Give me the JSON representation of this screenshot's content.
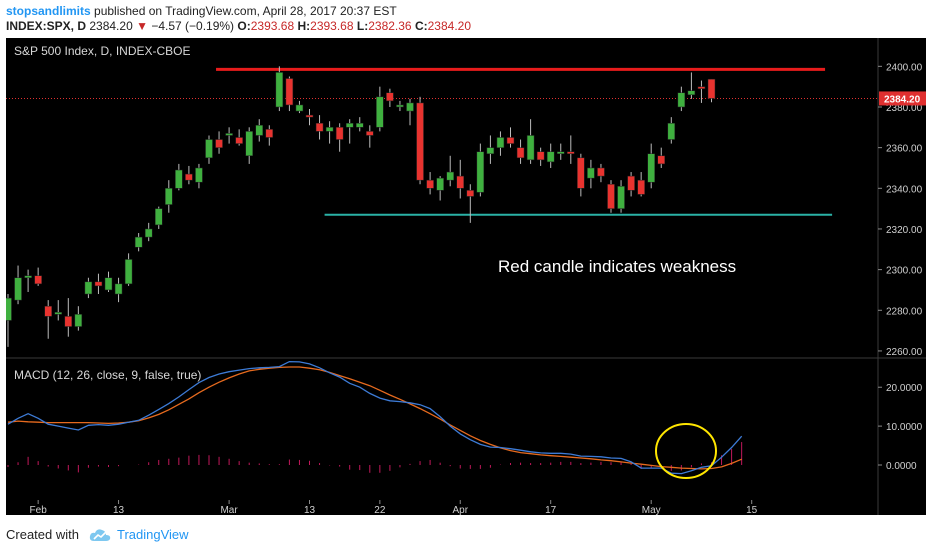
{
  "header": {
    "user": "stopsandlimits",
    "published": "published on TradingView.com, April 28, 2017 20:37 EST",
    "symbol": "INDEX:SPX, D",
    "last": "2384.20",
    "change_arrow": "▼",
    "change": "−4.57 (−0.19%)",
    "o_label": "O:",
    "o_value": "2393.68",
    "h_label": "H:",
    "h_value": "2393.68",
    "l_label": "L:",
    "l_value": "2382.36",
    "c_label": "C:",
    "c_value": "2384.20"
  },
  "footer": {
    "created_with": "Created with",
    "brand": "TradingView",
    "logo_icon": "tradingview-cloud-icon"
  },
  "colors": {
    "up": "#3fb03f",
    "down": "#e8332f",
    "background": "#000000",
    "macd_line": "#3d7bd6",
    "signal_line": "#e66a1e",
    "histogram": "#c2185b",
    "resistance": "#e81c1c",
    "support": "#2ab1a6",
    "price_line": "#e03030",
    "callout_circle": "#ffe600"
  },
  "chart_data": [
    {
      "type": "candlestick",
      "title": "S&P 500 Index, D, INDEX-CBOE",
      "x_labels": [
        "Feb",
        "13",
        "Mar",
        "13",
        "22",
        "Apr",
        "17",
        "May",
        "15"
      ],
      "y_ticks": [
        "2260.00",
        "2280.00",
        "2300.00",
        "2320.00",
        "2340.00",
        "2360.00",
        "2380.00",
        "2400.00"
      ],
      "ylim": [
        2258,
        2410
      ],
      "last_price_label": "2384.20",
      "annotation": "Red candle indicates weakness",
      "resistance_level": 2398.5,
      "support_level": 2327,
      "candles": [
        {
          "date": "2017-01-27",
          "o": 2275,
          "h": 2288,
          "l": 2262,
          "c": 2286
        },
        {
          "date": "2017-01-30",
          "o": 2285,
          "h": 2302,
          "l": 2283,
          "c": 2296
        },
        {
          "date": "2017-01-31",
          "o": 2296,
          "h": 2300,
          "l": 2289,
          "c": 2297
        },
        {
          "date": "2017-02-01",
          "o": 2297,
          "h": 2301,
          "l": 2292,
          "c": 2293
        },
        {
          "date": "2017-02-02",
          "o": 2282,
          "h": 2285,
          "l": 2266,
          "c": 2277
        },
        {
          "date": "2017-02-03",
          "o": 2278,
          "h": 2285,
          "l": 2275,
          "c": 2279
        },
        {
          "date": "2017-02-06",
          "o": 2277,
          "h": 2286,
          "l": 2267,
          "c": 2272
        },
        {
          "date": "2017-02-07",
          "o": 2272,
          "h": 2282,
          "l": 2270,
          "c": 2278
        },
        {
          "date": "2017-02-08",
          "o": 2288,
          "h": 2296,
          "l": 2286,
          "c": 2294
        },
        {
          "date": "2017-02-09",
          "o": 2294,
          "h": 2298,
          "l": 2288,
          "c": 2292
        },
        {
          "date": "2017-02-10",
          "o": 2290,
          "h": 2299,
          "l": 2289,
          "c": 2296
        },
        {
          "date": "2017-02-13",
          "o": 2288,
          "h": 2296,
          "l": 2284,
          "c": 2293
        },
        {
          "date": "2017-02-14",
          "o": 2293,
          "h": 2308,
          "l": 2292,
          "c": 2305
        },
        {
          "date": "2017-02-15",
          "o": 2311,
          "h": 2318,
          "l": 2309,
          "c": 2316
        },
        {
          "date": "2017-02-16",
          "o": 2316,
          "h": 2323,
          "l": 2314,
          "c": 2320
        },
        {
          "date": "2017-02-17",
          "o": 2322,
          "h": 2331,
          "l": 2320,
          "c": 2330
        },
        {
          "date": "2017-02-21",
          "o": 2332,
          "h": 2344,
          "l": 2328,
          "c": 2340
        },
        {
          "date": "2017-02-22",
          "o": 2340,
          "h": 2352,
          "l": 2339,
          "c": 2349
        },
        {
          "date": "2017-02-23",
          "o": 2347,
          "h": 2351,
          "l": 2342,
          "c": 2344
        },
        {
          "date": "2017-02-24",
          "o": 2343,
          "h": 2352,
          "l": 2340,
          "c": 2350
        },
        {
          "date": "2017-02-27",
          "o": 2355,
          "h": 2366,
          "l": 2352,
          "c": 2364
        },
        {
          "date": "2017-02-28",
          "o": 2364,
          "h": 2368,
          "l": 2357,
          "c": 2360
        },
        {
          "date": "2017-03-01",
          "o": 2366,
          "h": 2370,
          "l": 2362,
          "c": 2367
        },
        {
          "date": "2017-03-02",
          "o": 2365,
          "h": 2369,
          "l": 2361,
          "c": 2362
        },
        {
          "date": "2017-03-03",
          "o": 2356,
          "h": 2370,
          "l": 2352,
          "c": 2368
        },
        {
          "date": "2017-03-06",
          "o": 2366,
          "h": 2374,
          "l": 2363,
          "c": 2371
        },
        {
          "date": "2017-03-07",
          "o": 2369,
          "h": 2371,
          "l": 2361,
          "c": 2365
        },
        {
          "date": "2017-03-08",
          "o": 2380,
          "h": 2400,
          "l": 2378,
          "c": 2397
        },
        {
          "date": "2017-03-09",
          "o": 2394,
          "h": 2395,
          "l": 2378,
          "c": 2381
        },
        {
          "date": "2017-03-10",
          "o": 2378,
          "h": 2383,
          "l": 2377,
          "c": 2381
        },
        {
          "date": "2017-03-13",
          "o": 2376,
          "h": 2379,
          "l": 2371,
          "c": 2375
        },
        {
          "date": "2017-03-14",
          "o": 2372,
          "h": 2376,
          "l": 2364,
          "c": 2368
        },
        {
          "date": "2017-03-15",
          "o": 2368,
          "h": 2373,
          "l": 2362,
          "c": 2370
        },
        {
          "date": "2017-03-16",
          "o": 2370,
          "h": 2372,
          "l": 2358,
          "c": 2364
        },
        {
          "date": "2017-03-17",
          "o": 2370,
          "h": 2374,
          "l": 2362,
          "c": 2372
        },
        {
          "date": "2017-03-20",
          "o": 2370,
          "h": 2375,
          "l": 2368,
          "c": 2372
        },
        {
          "date": "2017-03-21",
          "o": 2368,
          "h": 2371,
          "l": 2360,
          "c": 2366
        },
        {
          "date": "2017-03-22",
          "o": 2370,
          "h": 2390,
          "l": 2368,
          "c": 2385
        },
        {
          "date": "2017-03-23",
          "o": 2387,
          "h": 2389,
          "l": 2380,
          "c": 2383
        },
        {
          "date": "2017-03-24",
          "o": 2380,
          "h": 2383,
          "l": 2378,
          "c": 2381
        },
        {
          "date": "2017-03-27",
          "o": 2378,
          "h": 2384,
          "l": 2371,
          "c": 2382
        },
        {
          "date": "2017-03-28",
          "o": 2382,
          "h": 2385,
          "l": 2342,
          "c": 2344
        },
        {
          "date": "2017-03-29",
          "o": 2344,
          "h": 2348,
          "l": 2337,
          "c": 2340
        },
        {
          "date": "2017-03-30",
          "o": 2339,
          "h": 2346,
          "l": 2334,
          "c": 2345
        },
        {
          "date": "2017-03-31",
          "o": 2344,
          "h": 2356,
          "l": 2341,
          "c": 2348
        },
        {
          "date": "2017-04-03",
          "o": 2346,
          "h": 2354,
          "l": 2335,
          "c": 2340
        },
        {
          "date": "2017-04-04",
          "o": 2339,
          "h": 2342,
          "l": 2323,
          "c": 2336
        },
        {
          "date": "2017-04-05",
          "o": 2338,
          "h": 2362,
          "l": 2336,
          "c": 2358
        },
        {
          "date": "2017-04-06",
          "o": 2357,
          "h": 2366,
          "l": 2352,
          "c": 2360
        },
        {
          "date": "2017-04-07",
          "o": 2360,
          "h": 2368,
          "l": 2356,
          "c": 2365
        },
        {
          "date": "2017-04-10",
          "o": 2365,
          "h": 2370,
          "l": 2360,
          "c": 2362
        },
        {
          "date": "2017-04-11",
          "o": 2360,
          "h": 2364,
          "l": 2352,
          "c": 2355
        },
        {
          "date": "2017-04-12",
          "o": 2354,
          "h": 2374,
          "l": 2352,
          "c": 2366
        },
        {
          "date": "2017-04-13",
          "o": 2358,
          "h": 2360,
          "l": 2351,
          "c": 2354
        },
        {
          "date": "2017-04-17",
          "o": 2353,
          "h": 2362,
          "l": 2350,
          "c": 2358
        },
        {
          "date": "2017-04-18",
          "o": 2357,
          "h": 2362,
          "l": 2354,
          "c": 2358
        },
        {
          "date": "2017-04-19",
          "o": 2358,
          "h": 2366,
          "l": 2352,
          "c": 2357
        },
        {
          "date": "2017-04-20",
          "o": 2355,
          "h": 2357,
          "l": 2336,
          "c": 2340
        },
        {
          "date": "2017-04-21",
          "o": 2345,
          "h": 2354,
          "l": 2340,
          "c": 2350
        },
        {
          "date": "2017-04-24",
          "o": 2350,
          "h": 2352,
          "l": 2343,
          "c": 2346
        },
        {
          "date": "2017-04-25",
          "o": 2342,
          "h": 2344,
          "l": 2328,
          "c": 2330
        },
        {
          "date": "2017-04-26",
          "o": 2330,
          "h": 2344,
          "l": 2328,
          "c": 2341
        },
        {
          "date": "2017-04-27",
          "o": 2346,
          "h": 2348,
          "l": 2336,
          "c": 2339
        },
        {
          "date": "2017-04-28",
          "o": 2344,
          "h": 2348,
          "l": 2336,
          "c": 2337
        },
        {
          "date": "2017-05-01",
          "o": 2343,
          "h": 2362,
          "l": 2340,
          "c": 2357
        },
        {
          "date": "2017-05-02",
          "o": 2356,
          "h": 2360,
          "l": 2350,
          "c": 2352
        },
        {
          "date": "2017-05-03",
          "o": 2364,
          "h": 2375,
          "l": 2362,
          "c": 2372
        },
        {
          "date": "2017-05-04",
          "o": 2380,
          "h": 2390,
          "l": 2378,
          "c": 2387
        },
        {
          "date": "2017-05-05",
          "o": 2386,
          "h": 2397,
          "l": 2384,
          "c": 2388
        },
        {
          "date": "2017-05-08",
          "o": 2390,
          "h": 2393,
          "l": 2382,
          "c": 2389
        },
        {
          "date": "2017-05-09",
          "o": 2393.68,
          "h": 2393.68,
          "l": 2382.36,
          "c": 2384.2
        }
      ]
    },
    {
      "type": "line",
      "title": "MACD (12, 26, close, 9, false, true)",
      "y_ticks": [
        "0.0000",
        "10.0000",
        "20.0000"
      ],
      "ylim": [
        -9,
        27
      ],
      "series": [
        {
          "name": "MACD",
          "values": [
            10.5,
            12,
            13.2,
            12,
            10.5,
            10,
            9.5,
            9,
            10.2,
            10.4,
            10.2,
            10.5,
            11,
            11.5,
            12.8,
            14.3,
            15.8,
            17.5,
            19.4,
            21.2,
            22.5,
            23.4,
            24,
            24.4,
            24.8,
            25,
            25.1,
            25.3,
            26.6,
            26.5,
            26,
            25,
            23.7,
            22.6,
            21,
            20,
            18.4,
            17.2,
            16.5,
            16.3,
            16,
            15.5,
            14.5,
            12.4,
            10,
            8,
            6.5,
            5.3,
            4.6,
            4.5,
            4.2,
            3.8,
            3.4,
            3.1,
            3,
            3,
            2.8,
            2.3,
            2.2,
            2.1,
            1.8,
            1.7,
            0.8,
            -0.8,
            -0.8,
            -0.8,
            -2.1,
            -2.2,
            -1.5,
            -0.6,
            -0.2,
            2,
            4.5,
            7.4
          ]
        },
        {
          "name": "Signal",
          "values": [
            11,
            11.3,
            11.1,
            11,
            10.9,
            10.9,
            10.9,
            10.9,
            10.9,
            10.8,
            10.7,
            10.8,
            11,
            11.4,
            12.1,
            13,
            14.2,
            15.6,
            17,
            18.6,
            20,
            21.3,
            22.4,
            23.4,
            24.2,
            24.6,
            24.9,
            25.1,
            25.2,
            25.2,
            24.9,
            24.5,
            23.8,
            23,
            22.2,
            21.3,
            20.4,
            19.2,
            18,
            16.9,
            15.7,
            14.5,
            13.2,
            11.8,
            10.3,
            8.9,
            7.5,
            6.3,
            5.3,
            4.4,
            3.7,
            3.2,
            2.9,
            2.6,
            2.4,
            2.2,
            2,
            1.8,
            1.6,
            1.3,
            1.1,
            0.8,
            0.5,
            0.2,
            -0.1,
            -0.4,
            -0.6,
            -0.8,
            -0.9,
            -1,
            -0.9,
            -0.5,
            0.4,
            1.5
          ]
        },
        {
          "name": "Histogram",
          "values": [
            -0.5,
            0.7,
            2.1,
            1,
            -0.4,
            -0.9,
            -1.4,
            -1.9,
            -0.7,
            -0.4,
            -0.5,
            -0.3,
            0,
            0.1,
            0.7,
            1.3,
            1.6,
            1.9,
            2.4,
            2.6,
            2.5,
            2.1,
            1.6,
            1,
            0.6,
            0.4,
            0.2,
            0.2,
            1.4,
            1.3,
            1.1,
            0.5,
            -0.1,
            -0.4,
            -1.2,
            -1.3,
            -2,
            -2,
            -1.5,
            -0.6,
            0.3,
            1,
            1.3,
            0.6,
            -0.3,
            -0.9,
            -1,
            -1,
            -0.7,
            0.1,
            0.5,
            0.6,
            0.5,
            0.5,
            0.6,
            0.8,
            0.8,
            0.5,
            0.6,
            0.8,
            0.7,
            0.9,
            0.3,
            -1,
            -0.7,
            -0.4,
            -1.5,
            -1.4,
            -0.6,
            0.4,
            0.7,
            2.5,
            4.1,
            5.9
          ]
        }
      ]
    }
  ]
}
